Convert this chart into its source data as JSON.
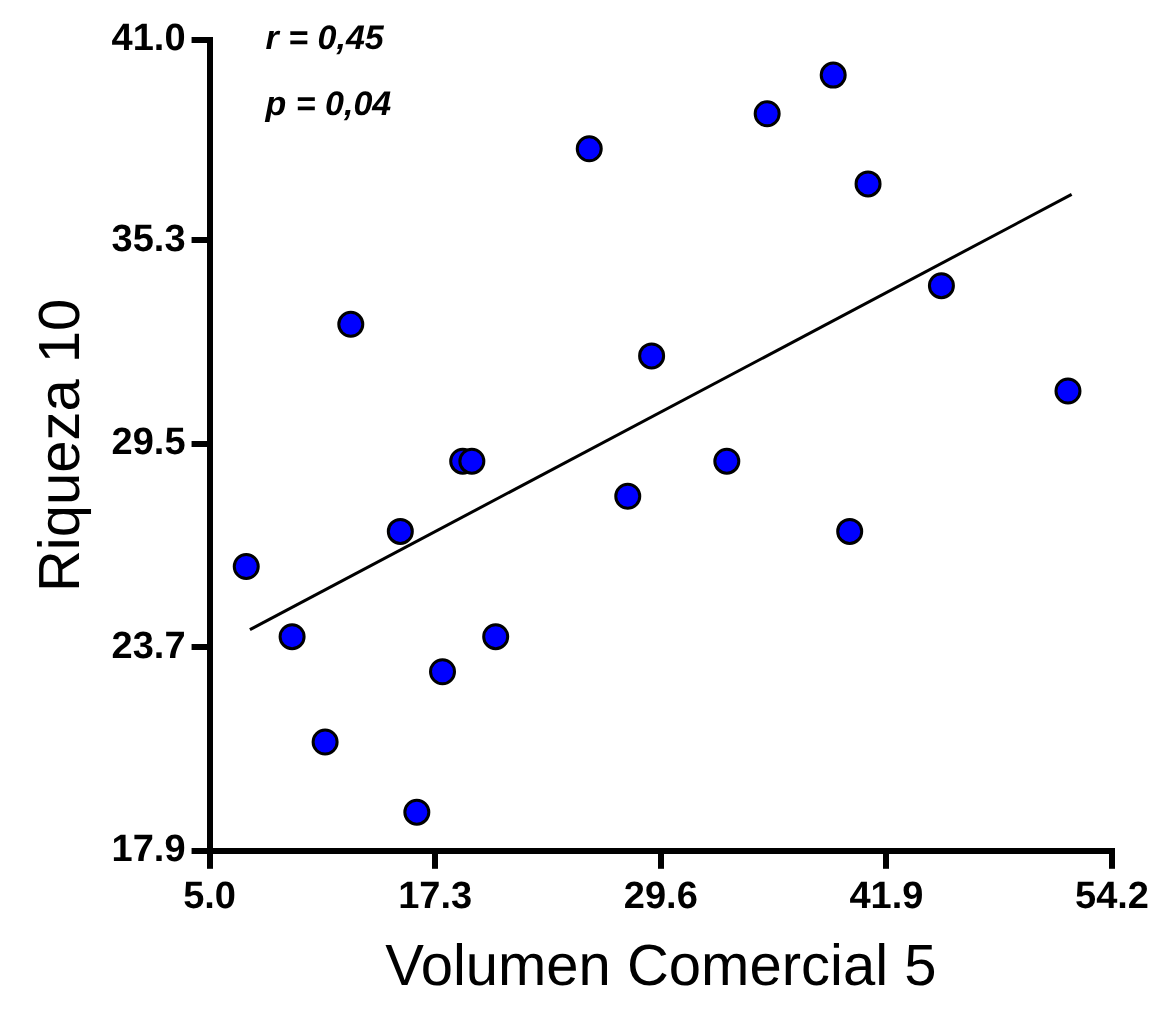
{
  "chart_data": {
    "type": "scatter",
    "xlabel": "Volumen Comercial 5",
    "ylabel": "Riqueza 10",
    "annotations": [
      "r = 0,45",
      "p = 0,04"
    ],
    "xlim": [
      5.0,
      54.2
    ],
    "xticks": [
      {
        "value": 5.0,
        "label": "5.0"
      },
      17.3,
      29.6,
      41.9,
      54.2
    ],
    "ylim": [
      17.9,
      41.0
    ],
    "yticks": [
      17.9,
      23.7,
      29.5,
      35.3,
      {
        "value": 41.0,
        "label": "41.0"
      }
    ],
    "grid": false,
    "legend": false,
    "marker": "circle",
    "series": [
      {
        "color": "#0000ff",
        "x": [
          12.7,
          25.7,
          35.4,
          39.0,
          40.9,
          44.9,
          29.1,
          51.8,
          7.0,
          9.5,
          11.3,
          15.4,
          16.3,
          17.7,
          18.8,
          19.3,
          20.6,
          27.8,
          33.2,
          39.9
        ],
        "values": [
          32.9,
          37.9,
          38.9,
          40.0,
          36.9,
          34.0,
          32.0,
          31.0,
          26.0,
          24.0,
          21.0,
          27.0,
          19.0,
          23.0,
          29.0,
          29.0,
          24.0,
          28.0,
          29.0,
          27.0
        ]
      },
      {
        "type": "line",
        "color": "#000000",
        "marker": "none",
        "line_style": "solid",
        "x": [
          7.2,
          52.0
        ],
        "values": [
          24.2,
          36.6
        ]
      }
    ]
  }
}
